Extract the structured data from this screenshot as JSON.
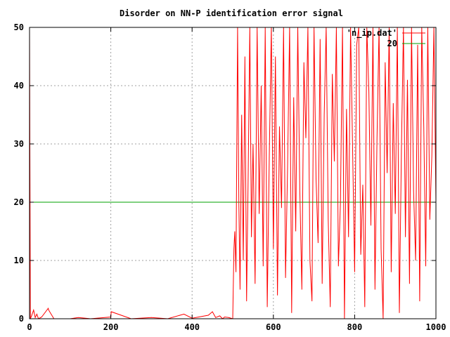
{
  "chart_data": {
    "type": "line",
    "title": "Disorder on NN-P identification error signal",
    "xlabel": "",
    "ylabel": "",
    "xlim": [
      0,
      1000
    ],
    "ylim": [
      0,
      50
    ],
    "x_ticks": [
      0,
      200,
      400,
      600,
      800,
      1000
    ],
    "y_ticks": [
      0,
      10,
      20,
      30,
      40,
      50
    ],
    "grid": true,
    "legend_position": "top-right",
    "series": [
      {
        "name": "'n_ip.dat'",
        "color": "#ff0000",
        "description": "Identification error signal; near zero with isolated spikes (up to ~2) for x < 500, then a large oscillating disorder with values between 0 and over 50 for x >= 500",
        "x": [
          0,
          2,
          5,
          10,
          14,
          18,
          22,
          30,
          46,
          47,
          60,
          100,
          120,
          150,
          200,
          201,
          250,
          300,
          340,
          380,
          400,
          440,
          450,
          458,
          468,
          475,
          480,
          490,
          500,
          503,
          505,
          508,
          512,
          515,
          518,
          522,
          526,
          530,
          534,
          538,
          542,
          546,
          550,
          555,
          560,
          565,
          570,
          575,
          580,
          585,
          590,
          595,
          600,
          605,
          610,
          615,
          620,
          625,
          630,
          635,
          640,
          645,
          650,
          655,
          660,
          665,
          670,
          675,
          680,
          685,
          690,
          695,
          700,
          705,
          710,
          715,
          720,
          725,
          730,
          735,
          740,
          745,
          750,
          755,
          760,
          765,
          770,
          775,
          780,
          785,
          790,
          795,
          800,
          805,
          810,
          815,
          820,
          825,
          830,
          835,
          840,
          845,
          850,
          855,
          860,
          865,
          870,
          875,
          880,
          885,
          890,
          895,
          900,
          905,
          910,
          915,
          920,
          925,
          930,
          935,
          940,
          945,
          950,
          955,
          960,
          965,
          970,
          975,
          980,
          985,
          990,
          995,
          1000
        ],
        "y": [
          50,
          0,
          0.5,
          1.5,
          0.2,
          0.8,
          0,
          0.3,
          1.8,
          1.5,
          0,
          0,
          0.2,
          0,
          0.3,
          1.2,
          0,
          0.2,
          0,
          0.8,
          0.1,
          0.6,
          1.2,
          0.2,
          0.5,
          0,
          0.3,
          0.2,
          0,
          12,
          15,
          8,
          50,
          20,
          5,
          35,
          10,
          45,
          3,
          25,
          50,
          14,
          30,
          6,
          50,
          18,
          40,
          9,
          50,
          2,
          28,
          50,
          12,
          45,
          4,
          33,
          19,
          50,
          7,
          26,
          50,
          1,
          38,
          15,
          50,
          22,
          5,
          44,
          31,
          50,
          10,
          3,
          50,
          24,
          13,
          48,
          6,
          35,
          50,
          17,
          2,
          42,
          27,
          50,
          9,
          20,
          50,
          0,
          36,
          14,
          50,
          29,
          8,
          47,
          50,
          11,
          23,
          2,
          50,
          39,
          16,
          50,
          5,
          31,
          50,
          12,
          0,
          44,
          25,
          50,
          8,
          37,
          18,
          50,
          1,
          29,
          50,
          14,
          41,
          6,
          50,
          22,
          10,
          47,
          3,
          50,
          33,
          9,
          50,
          17,
          28,
          50,
          20
        ]
      },
      {
        "name": "20",
        "color": "#00a000",
        "x": [
          0,
          1000
        ],
        "y": [
          20,
          20
        ]
      }
    ]
  }
}
